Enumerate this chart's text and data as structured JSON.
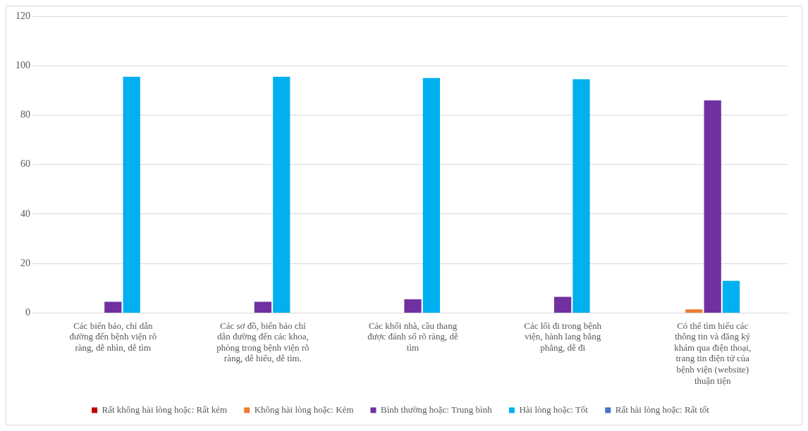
{
  "chart_data": {
    "type": "bar",
    "categories": [
      "Các biển báo, chỉ dẫn đường đến bệnh viện rõ ràng, dễ nhìn, dễ tìm",
      "Các sơ đồ, biển báo chỉ dẫn đường đến các khoa, phòng trong bệnh viện rõ ràng, dễ hiểu, dễ tìm.",
      "Các khối nhà, cầu thang được đánh số rõ ràng, dễ tìm",
      "Các lối đi trong bệnh viện, hành lang bằng phẳng, dễ đi",
      "Có thể tìm hiểu các thông tin và đăng ký khám qua điện thoại, trang tin điện tử của bệnh viện (website) thuận tiện"
    ],
    "series": [
      {
        "name": "Rất không hài lòng hoặc: Rất kém",
        "color": "#c00000",
        "values": [
          0,
          0,
          0,
          0,
          0
        ]
      },
      {
        "name": "Không hài lòng hoặc: Kém",
        "color": "#ed7d31",
        "values": [
          0,
          0,
          0,
          0,
          1.5
        ]
      },
      {
        "name": "Bình thường hoặc: Trung bình",
        "color": "#7030a0",
        "values": [
          4.5,
          4.5,
          5.5,
          6.5,
          86
        ]
      },
      {
        "name": "Hài lòng hoặc: Tốt",
        "color": "#00b0f0",
        "values": [
          95.5,
          95.5,
          95,
          94.5,
          13
        ]
      },
      {
        "name": "Rất hài lòng hoặc: Rất tốt",
        "color": "#4472c4",
        "values": [
          0,
          0,
          0,
          0,
          0
        ]
      }
    ],
    "ylim": [
      0,
      120
    ],
    "yticks": [
      0,
      20,
      40,
      60,
      80,
      100,
      120
    ],
    "grid": "y",
    "legend": "bottom"
  }
}
